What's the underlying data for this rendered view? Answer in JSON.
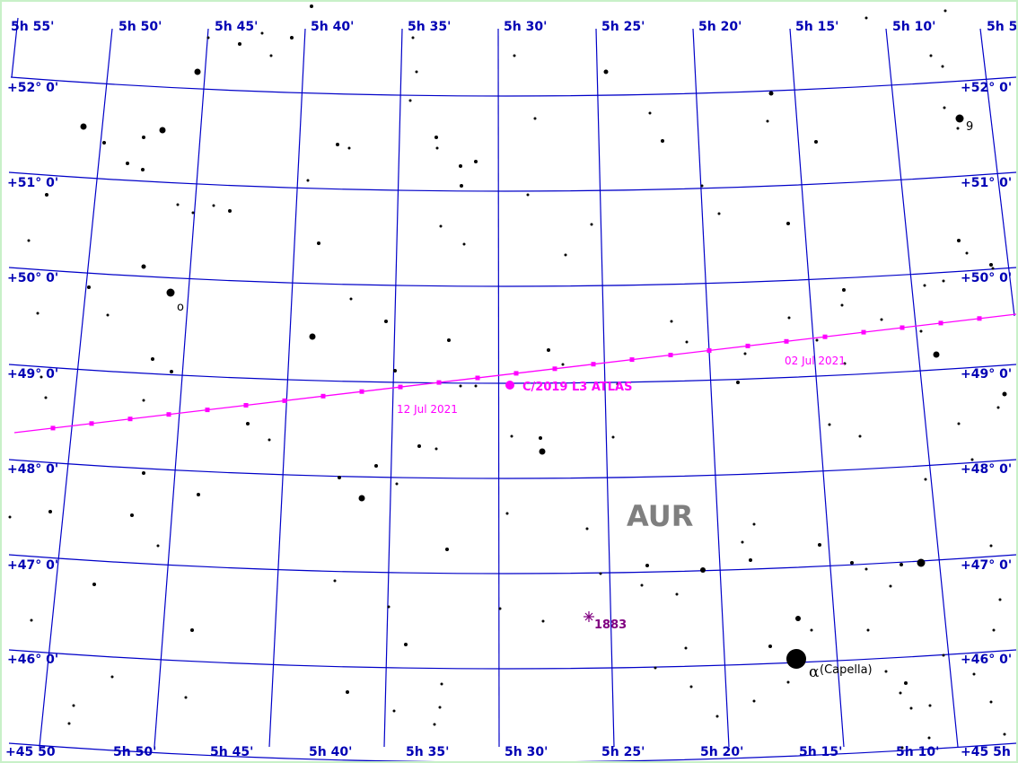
{
  "map": {
    "constellation": "AUR",
    "ra_top_labels": [
      "5h 55'",
      "5h 50'",
      "5h 45'",
      "5h 40'",
      "5h 35'",
      "5h 30'",
      "5h 25'",
      "5h 20'",
      "5h 15'",
      "5h 10'",
      "5h 5"
    ],
    "ra_bottom_labels": [
      "5h 50'",
      "5h 45'",
      "5h 40'",
      "5h 35'",
      "5h 30'",
      "5h 25'",
      "5h 20'",
      "5h 15'",
      "5h 10'"
    ],
    "dec_left_labels": [
      "+52° 0'",
      "+51° 0'",
      "+50° 0'",
      "+49° 0'",
      "+48° 0'",
      "+47° 0'",
      "+46° 0'",
      "+45° 0'"
    ],
    "dec_right_labels": [
      "+52° 0'",
      "+51° 0'",
      "+50° 0'",
      "+49° 0'",
      "+48° 0'",
      "+47° 0'",
      "+46° 0'",
      "+45° 0'"
    ],
    "corner_overlap_left": "+45 50",
    "corner_overlap_right": "+45 5h",
    "comet": {
      "name": "C/2019 L3 ATLAS",
      "date_labels": [
        "12 Jul 2021",
        "02 Jul 2021"
      ]
    },
    "nova": {
      "label": "1883"
    },
    "capella": {
      "greek": "α",
      "name": "(Capella)"
    },
    "star_labels": {
      "nine": "9",
      "omicron": "o"
    },
    "colors": {
      "grid": "#0000c8",
      "comet": "#ff00ff",
      "nova": "#800080",
      "constellation": "#7f7f7f",
      "frame": "#c8f0c8"
    }
  }
}
